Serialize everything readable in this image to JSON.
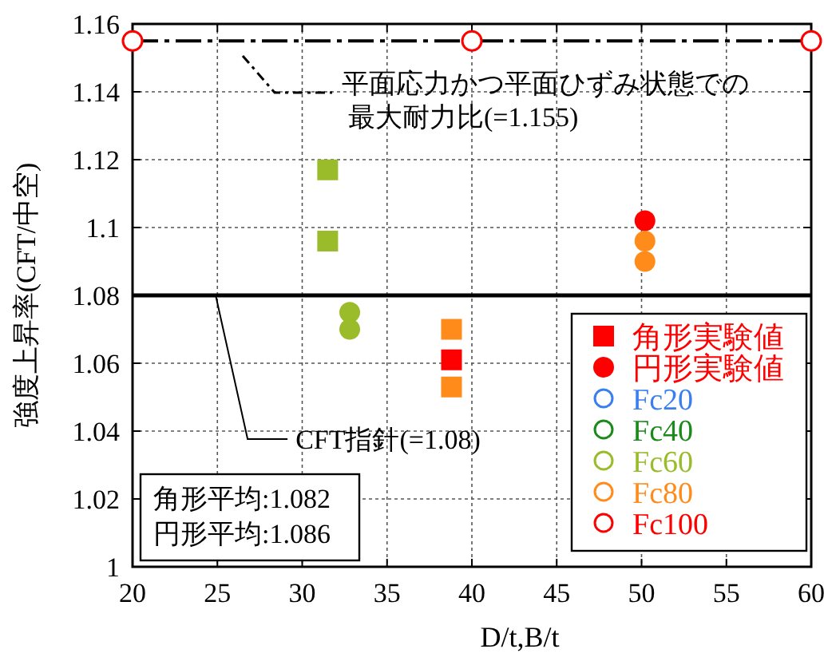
{
  "chart_data": {
    "type": "scatter",
    "xlabel": "D/t,B/t",
    "ylabel": "強度上昇率(CFT/中空)",
    "xlim": [
      20,
      60
    ],
    "xticks": [
      20,
      25,
      30,
      35,
      40,
      45,
      50,
      55,
      60
    ],
    "ylim": [
      1,
      1.16
    ],
    "yticks": [
      1,
      1.02,
      1.04,
      1.06,
      1.08,
      1.1,
      1.12,
      1.14,
      1.16
    ],
    "grid": true,
    "legend": "bottom right",
    "series": [
      {
        "name": "角形実験値",
        "marker": "square",
        "color": "#ff0000",
        "x": [
          38.8
        ],
        "values": [
          1.061
        ]
      },
      {
        "name": "円形実験値",
        "marker": "circle",
        "color": "#ff0000",
        "x": [
          50.2
        ],
        "values": [
          1.102
        ]
      },
      {
        "name": "Fc20",
        "type": "line",
        "marker": "circle",
        "color": "#3a7ff0"
      },
      {
        "name": "Fc40",
        "type": "line",
        "marker": "circle",
        "color": "#1a8a1a"
      },
      {
        "name": "Fc60",
        "type": "line",
        "marker": "circle",
        "color": "#9abb2a"
      },
      {
        "name": "Fc80",
        "type": "line",
        "marker": "circle",
        "color": "#ff8c1a"
      },
      {
        "name": "Fc100",
        "type": "line",
        "marker": "circle",
        "line_style": "dashed",
        "color": "#ff0000",
        "x": [
          20,
          40,
          60
        ],
        "values": [
          1.155,
          1.155,
          1.155
        ]
      },
      {
        "marker": "square",
        "color": "#9abb2a",
        "x": [
          31.5,
          31.5
        ],
        "values": [
          1.117,
          1.096
        ]
      },
      {
        "marker": "circle",
        "color": "#9abb2a",
        "x": [
          32.8,
          32.8
        ],
        "values": [
          1.075,
          1.07
        ]
      },
      {
        "marker": "square",
        "color": "#ff8c1a",
        "x": [
          38.8,
          38.8
        ],
        "values": [
          1.07,
          1.053
        ]
      },
      {
        "marker": "circle",
        "color": "#ff8c1a",
        "x": [
          50.2,
          50.2
        ],
        "values": [
          1.096,
          1.09
        ]
      }
    ],
    "ref_lines": [
      {
        "axis": "y",
        "value": 1.08,
        "color": "#000000",
        "line_style": "solid"
      }
    ],
    "annotations": [
      "平面応力かつ平面ひずみ状態での",
      "最大耐力比(=1.155)",
      {
        "text": "CFT指針(=1.08)",
        "x": 24.9,
        "y": 1.08
      },
      "角形平均:1.082",
      "円形平均:1.086"
    ]
  }
}
